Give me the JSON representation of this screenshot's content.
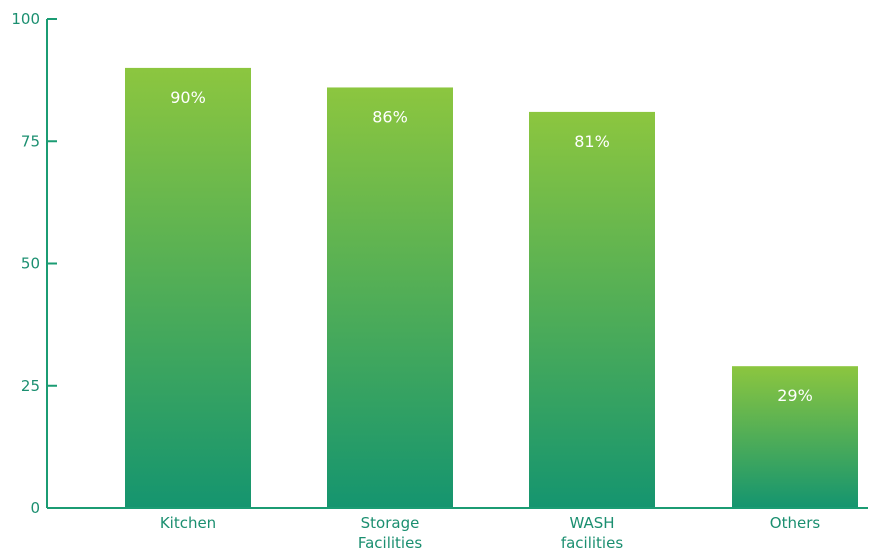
{
  "chart_data": {
    "type": "bar",
    "title": "",
    "xlabel": "",
    "ylabel": "",
    "categories": [
      "Kitchen",
      "Storage Facilities",
      "WASH facilities",
      "Others"
    ],
    "category_lines": [
      [
        "Kitchen"
      ],
      [
        "Storage",
        "Facilities"
      ],
      [
        "WASH",
        "facilities"
      ],
      [
        "Others"
      ]
    ],
    "values": [
      90,
      86,
      81,
      29
    ],
    "data_labels": [
      "90%",
      "86%",
      "81%",
      "29%"
    ],
    "ylim": [
      0,
      100
    ],
    "yticks": [
      0,
      25,
      50,
      75,
      100
    ],
    "grid": false,
    "legend": "none",
    "colors": {
      "bar_top": "#8cc63f",
      "bar_bottom": "#15956f",
      "axis": "#1b9c73",
      "tick_text": "#1b8f70",
      "label_text": "#ffffff"
    }
  }
}
